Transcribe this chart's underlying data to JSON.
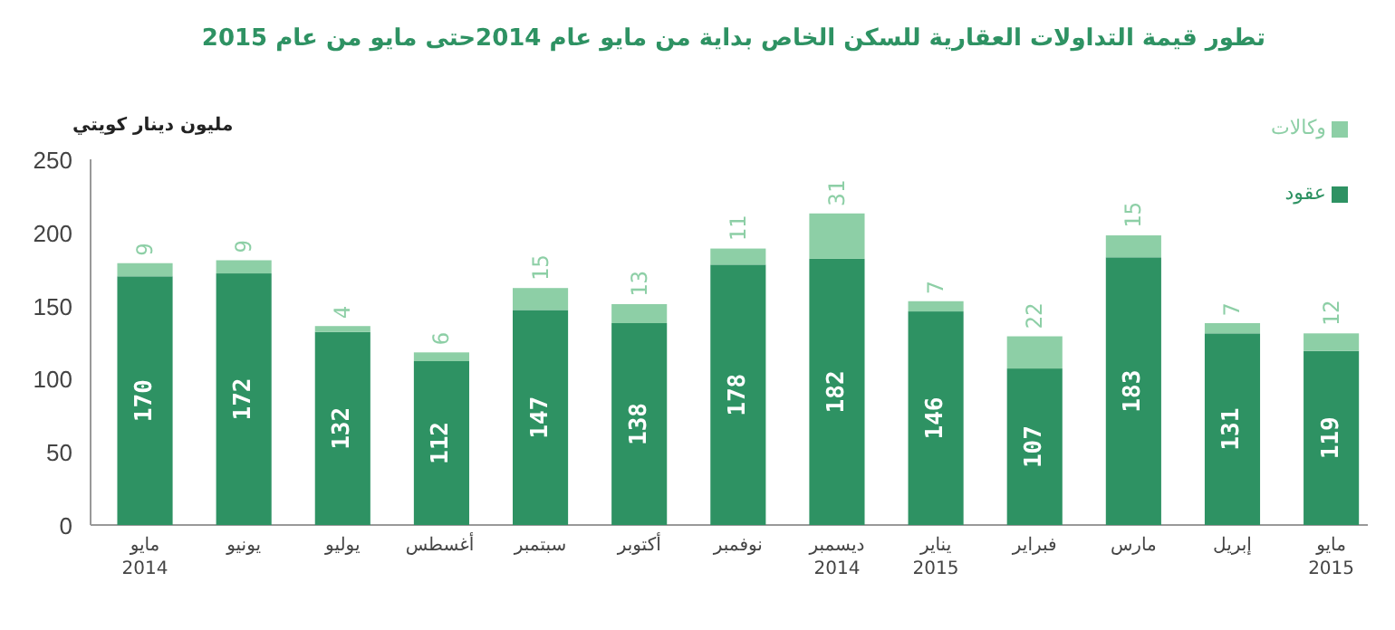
{
  "chart_data": {
    "type": "bar",
    "title": "تطور قيمة التداولات العقارية للسكن الخاص بداية من مايو عام 2014حتى مايو من عام 2015",
    "ylabel": "مليون دينار كويتي",
    "categories": [
      "مايو 2014",
      "يونيو",
      "يوليو",
      "أغسطس",
      "سبتمبر",
      "أكتوبر",
      "نوفمبر",
      "ديسمبر 2014",
      "يناير 2015",
      "فبراير",
      "مارس",
      "إبريل",
      "مايو 2015"
    ],
    "series": [
      {
        "name": "عقود",
        "color": "#2e9263",
        "values": [
          170,
          172,
          132,
          112,
          147,
          138,
          178,
          182,
          146,
          107,
          183,
          131,
          119
        ]
      },
      {
        "name": "وكالات",
        "color": "#8dcfa6",
        "values": [
          9,
          9,
          4,
          6,
          15,
          13,
          11,
          31,
          7,
          22,
          15,
          7,
          12
        ]
      }
    ],
    "stacked": true,
    "ylim": [
      0,
      250
    ],
    "yticks": [
      0,
      50,
      100,
      150,
      200,
      250
    ],
    "data_labels": true,
    "legend": "top right"
  }
}
